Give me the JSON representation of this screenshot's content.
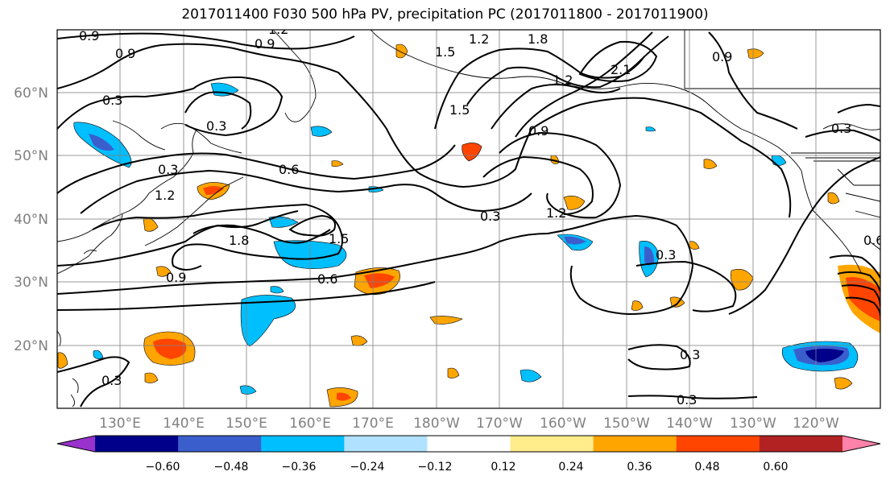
{
  "title": "2017011400 F030 500 hPa PV, precipitation PC (2017011800 - 2017011900)",
  "lat_labels": [
    "60°N",
    "50°N",
    "40°N",
    "30°N",
    "20°N"
  ],
  "lon_labels": [
    "130°E",
    "140°E",
    "150°E",
    "160°E",
    "170°E",
    "180°W",
    "170°W",
    "160°W",
    "150°W",
    "140°W",
    "130°W",
    "120°W"
  ],
  "contour_labels": [
    "0.9",
    "1.2",
    "0.9",
    "0.9",
    "1.2",
    "1.5",
    "1.8",
    "2.1",
    "0.3",
    "0.3",
    "0.3",
    "1.2",
    "0.6",
    "1.2",
    "1.8",
    "1.5",
    "0.3",
    "1.2",
    "0.9",
    "0.6",
    "0.3",
    "0.3",
    "0.3",
    "0.3",
    "0.3",
    "0.9",
    "1.5",
    "0.9",
    "0.6"
  ],
  "colorbar": {
    "ticks": [
      "−0.60",
      "−0.48",
      "−0.36",
      "−0.24",
      "−0.12",
      "0.12",
      "0.24",
      "0.36",
      "0.48",
      "0.60"
    ],
    "colors": [
      "#9932cc",
      "#00008b",
      "#3a5fcd",
      "#00bfff",
      "#b0e2ff",
      "#ffffff",
      "#ffec8b",
      "#ffa500",
      "#ff4500",
      "#b22222",
      "#ff82ab"
    ]
  },
  "colors": {
    "axis": "#808080",
    "grid": "#808080",
    "contour": "#000000"
  }
}
